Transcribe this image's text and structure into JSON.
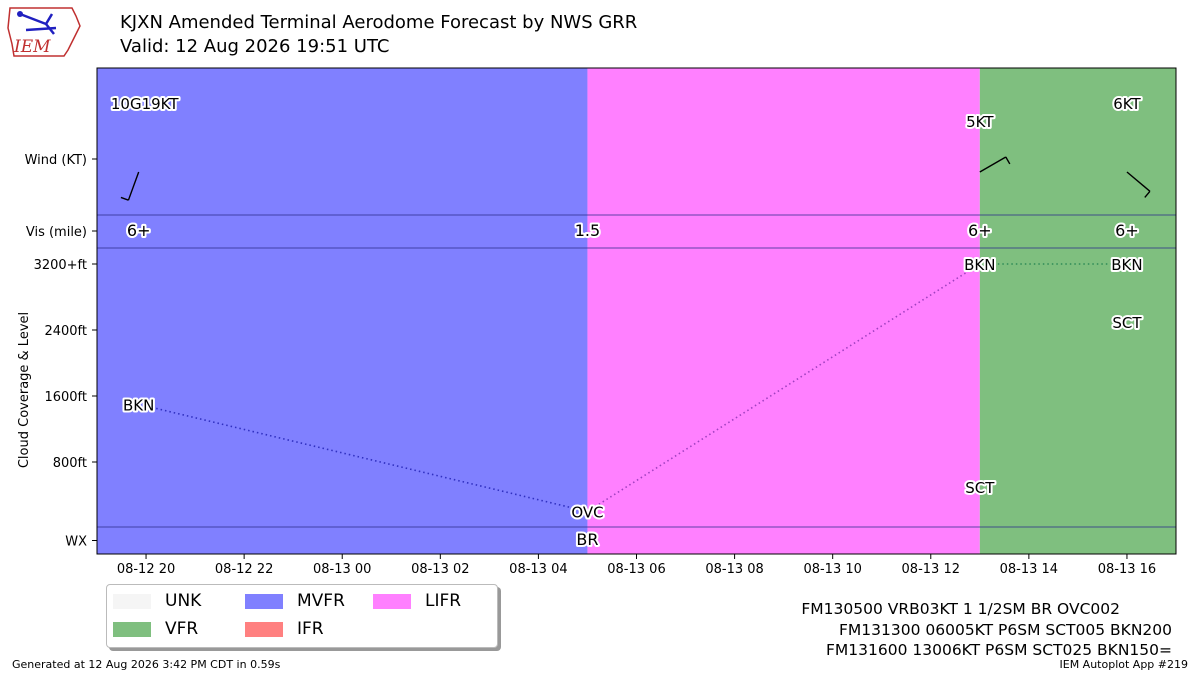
{
  "header": {
    "title": "KJXN Amended Terminal Aerodome Forecast by NWS GRR",
    "subtitle": "Valid: 12 Aug 2026 19:51 UTC",
    "logo_text": "IEM"
  },
  "footer": {
    "generated": "Generated at 12 Aug 2026 3:42 PM CDT in 0.59s",
    "app": "IEM Autoplot App #219"
  },
  "taf_lines": [
    "FM130500 VRB03KT 1 1/2SM BR OVC002",
    "FM131300 06005KT P6SM SCT005 BKN200",
    "FM131600 13006KT P6SM SCT025 BKN150="
  ],
  "legend": [
    {
      "label": "UNK",
      "color": "#f5f5f5"
    },
    {
      "label": "VFR",
      "color": "#7fbf7f"
    },
    {
      "label": "MVFR",
      "color": "#8080ff"
    },
    {
      "label": "IFR",
      "color": "#ff8080"
    },
    {
      "label": "LIFR",
      "color": "#ff80ff"
    }
  ],
  "chart_data": {
    "type": "timeseries",
    "ylabel": "Cloud Coverage & Level",
    "row_labels": {
      "wind": "Wind (KT)",
      "vis": "Vis (mile)",
      "wx": "WX"
    },
    "cloud_axis": {
      "ticks": [
        {
          "value": 800,
          "label": "800ft"
        },
        {
          "value": 1600,
          "label": "1600ft"
        },
        {
          "value": 2400,
          "label": "2400ft"
        },
        {
          "value": 3200,
          "label": "3200+ft"
        }
      ],
      "range": [
        0,
        3200
      ]
    },
    "x_range": [
      "2026-08-12 19:00",
      "2026-08-13 17:00"
    ],
    "x_ticks": [
      {
        "t": "2026-08-12 20:00",
        "label": "08-12 20"
      },
      {
        "t": "2026-08-12 22:00",
        "label": "08-12 22"
      },
      {
        "t": "2026-08-13 00:00",
        "label": "08-13 00"
      },
      {
        "t": "2026-08-13 02:00",
        "label": "08-13 02"
      },
      {
        "t": "2026-08-13 04:00",
        "label": "08-13 04"
      },
      {
        "t": "2026-08-13 06:00",
        "label": "08-13 06"
      },
      {
        "t": "2026-08-13 08:00",
        "label": "08-13 08"
      },
      {
        "t": "2026-08-13 10:00",
        "label": "08-13 10"
      },
      {
        "t": "2026-08-13 12:00",
        "label": "08-13 12"
      },
      {
        "t": "2026-08-13 14:00",
        "label": "08-13 14"
      },
      {
        "t": "2026-08-13 16:00",
        "label": "08-13 16"
      }
    ],
    "category_periods": [
      {
        "start": "2026-08-12 19:00",
        "end": "2026-08-13 05:00",
        "category": "MVFR",
        "color": "#8080ff"
      },
      {
        "start": "2026-08-13 05:00",
        "end": "2026-08-13 13:00",
        "category": "LIFR",
        "color": "#ff80ff"
      },
      {
        "start": "2026-08-13 13:00",
        "end": "2026-08-13 17:00",
        "category": "VFR",
        "color": "#7fbf7f"
      }
    ],
    "forecasts": [
      {
        "t": "2026-08-12 19:51",
        "wind": "10G19KT",
        "wind_dir": 200,
        "wind_speed": 10,
        "vis": "6+",
        "wx": "",
        "clouds": [
          {
            "cover": "BKN",
            "level": 1500
          }
        ]
      },
      {
        "t": "2026-08-13 05:00",
        "wind": "",
        "wind_dir": null,
        "wind_speed": 3,
        "vis": "1.5",
        "wx": "BR",
        "clouds": [
          {
            "cover": "OVC",
            "level": 200
          }
        ]
      },
      {
        "t": "2026-08-13 13:00",
        "wind": "5KT",
        "wind_dir": 60,
        "wind_speed": 5,
        "vis": "6+",
        "wx": "",
        "clouds": [
          {
            "cover": "SCT",
            "level": 500
          },
          {
            "cover": "BKN",
            "level": 3200
          }
        ]
      },
      {
        "t": "2026-08-13 16:00",
        "wind": "6KT",
        "wind_dir": 130,
        "wind_speed": 6,
        "vis": "6+",
        "wx": "",
        "clouds": [
          {
            "cover": "SCT",
            "level": 2500
          },
          {
            "cover": "BKN",
            "level": 3200
          }
        ]
      }
    ],
    "cloud_lines": [
      {
        "points": [
          [
            "2026-08-12 19:51",
            1500
          ],
          [
            "2026-08-13 05:00",
            200
          ]
        ],
        "color": "#3030c0"
      },
      {
        "points": [
          [
            "2026-08-13 05:00",
            200
          ],
          [
            "2026-08-13 13:00",
            3200
          ]
        ],
        "color": "#a040c0"
      },
      {
        "points": [
          [
            "2026-08-13 13:00",
            3200
          ],
          [
            "2026-08-13 16:00",
            3200
          ]
        ],
        "color": "#2e8b57"
      }
    ]
  }
}
